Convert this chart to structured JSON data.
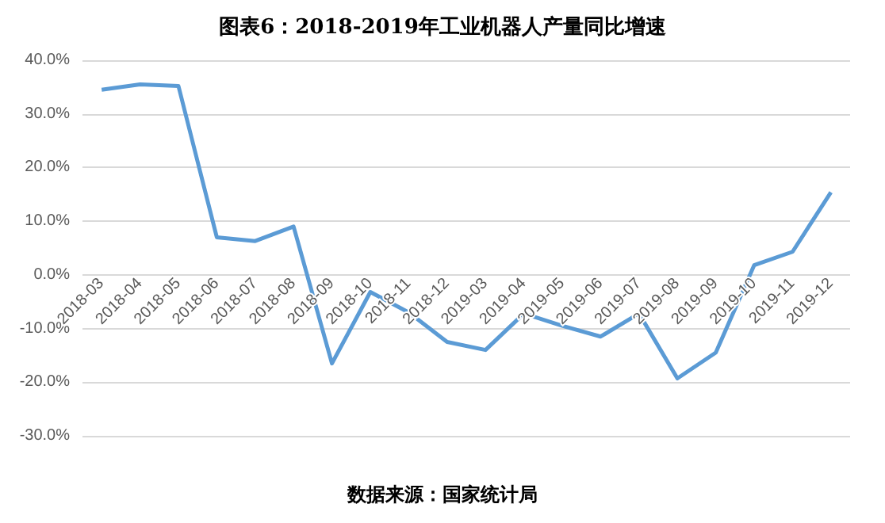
{
  "chart_data": {
    "type": "line",
    "title": "图表6：2018-2019年工业机器人产量同比增速",
    "categories": [
      "2018-03",
      "2018-04",
      "2018-05",
      "2018-06",
      "2018-07",
      "2018-08",
      "2018-09",
      "2018-10",
      "2018-11",
      "2018-12",
      "2019-03",
      "2019-04",
      "2019-05",
      "2019-06",
      "2019-07",
      "2019-08",
      "2019-09",
      "2019-10",
      "2019-11",
      "2019-12"
    ],
    "series": [
      {
        "color": "#5b9bd5",
        "values": [
          34.5,
          35.5,
          35.2,
          7,
          6.3,
          9,
          -16.5,
          -3.2,
          -7,
          -12.5,
          -14,
          -7.2,
          -9.5,
          -11.5,
          -7.2,
          -19.3,
          -14.5,
          1.8,
          4.3,
          15.4
        ]
      }
    ],
    "ylim": [
      -30,
      40
    ],
    "yticks": [
      {
        "value": -30,
        "label": "-30.0%"
      },
      {
        "value": -20,
        "label": "-20.0%"
      },
      {
        "value": -10,
        "label": "-10.0%"
      },
      {
        "value": 0,
        "label": "0.0%"
      },
      {
        "value": 10,
        "label": "10.0%"
      },
      {
        "value": 20,
        "label": "20.0%"
      },
      {
        "value": 30,
        "label": "30.0%"
      },
      {
        "value": 40,
        "label": "40.0%"
      }
    ],
    "grid": "y",
    "marker": "none",
    "line_style": "solid",
    "annotations": [
      "数据来源：国家统计局"
    ]
  }
}
